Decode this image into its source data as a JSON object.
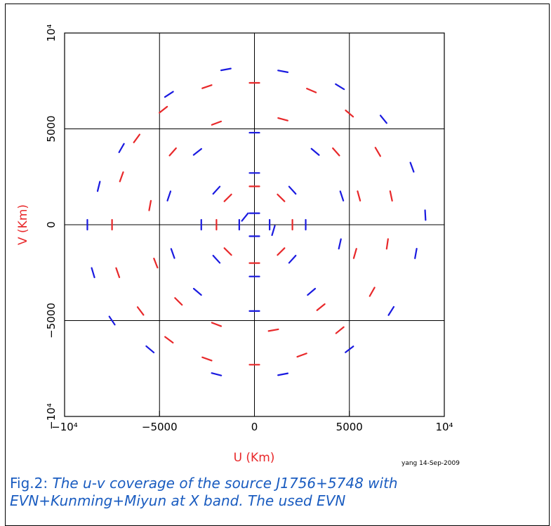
{
  "chart_data": {
    "type": "scatter",
    "xlabel": "U (Km)",
    "ylabel": "V (Km)",
    "annotation": "yang 14-Sep-2009",
    "xlim": [
      -10000,
      10000
    ],
    "ylim": [
      -10000,
      10000
    ],
    "xticks": [
      {
        "value": -10000,
        "label": "−10⁴"
      },
      {
        "value": -5000,
        "label": "−5000"
      },
      0,
      5000,
      {
        "value": 10000,
        "label": "10⁴"
      }
    ],
    "yticks": [
      {
        "value": -10000,
        "label": "−10⁴"
      },
      {
        "value": -5000,
        "label": "−5000"
      },
      0,
      5000,
      {
        "value": 10000,
        "label": "10⁴"
      }
    ],
    "grid": true,
    "series": [
      {
        "color": "#e8282a",
        "x": [
          -7000,
          -7500,
          -7200,
          -6000,
          -4500,
          -2500,
          0,
          2500,
          4500,
          6200,
          7000,
          7200,
          6500,
          5000,
          3000,
          0,
          -2500,
          -4800,
          -6200,
          -5500,
          -5200,
          -4000,
          -2000,
          1000,
          3500,
          5300,
          5500,
          4300,
          1500,
          -2000,
          -4300,
          -2000,
          -1400,
          0,
          1400,
          2000,
          1400,
          0,
          -1400
        ],
        "y": [
          2500,
          0,
          -2500,
          -4500,
          -6000,
          -7000,
          -7300,
          -6800,
          -5500,
          -3500,
          -1000,
          1500,
          3800,
          5800,
          7000,
          7400,
          7200,
          6000,
          4500,
          1000,
          -2000,
          -4000,
          -5200,
          -5500,
          -4300,
          -1500,
          1500,
          3800,
          5500,
          5300,
          3800,
          0,
          -1400,
          -2000,
          -1400,
          0,
          1400,
          2000,
          1400
        ]
      },
      {
        "color": "#1a1ae0",
        "x": [
          -8800,
          -8500,
          -7500,
          -5500,
          -2000,
          1500,
          5000,
          7200,
          8500,
          9000,
          8300,
          6800,
          4500,
          1500,
          -1500,
          -4500,
          -7000,
          -8200,
          -4500,
          -4300,
          -3000,
          0,
          3000,
          4500,
          4600,
          3200,
          0,
          -3000,
          -2800,
          -2000,
          0,
          2000,
          2700,
          2000,
          0,
          -2000,
          -800,
          0,
          800,
          0,
          1000,
          -500
        ],
        "y": [
          0,
          -2500,
          -5000,
          -6500,
          -7800,
          -7800,
          -6500,
          -4500,
          -1500,
          500,
          3000,
          5500,
          7200,
          8000,
          8100,
          6800,
          4000,
          2000,
          1500,
          -1500,
          -3500,
          -4500,
          -3500,
          -1000,
          1500,
          3800,
          4800,
          3800,
          0,
          -1800,
          -2700,
          -1800,
          0,
          1800,
          2700,
          1800,
          0,
          -600,
          0,
          600,
          -300,
          400
        ]
      }
    ]
  },
  "caption": {
    "label": "Fig.2:",
    "text": "The u-v coverage of the source J1756+5748 with EVN+Kunming+Miyun at X band. The used EVN"
  }
}
